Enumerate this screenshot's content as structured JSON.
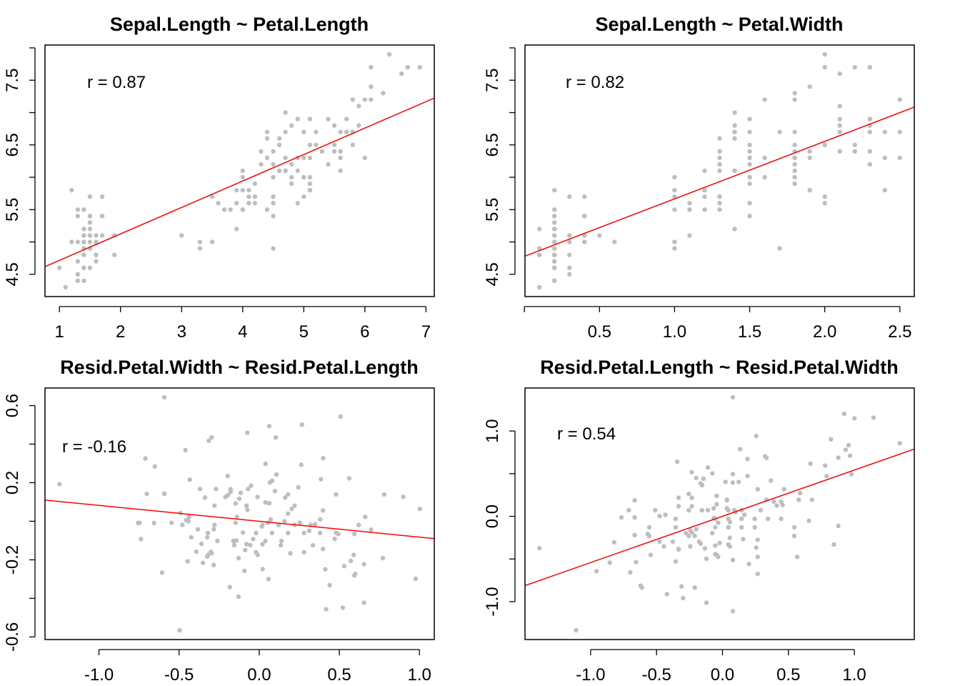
{
  "chart_data": [
    {
      "type": "scatter",
      "title": "Sepal.Length ~ Petal.Length",
      "x": {
        "var": "petal_length"
      },
      "y": {
        "var": "sepal_length"
      },
      "r_label": "r = 0.87",
      "x_ticks": [
        1,
        2,
        3,
        4,
        5,
        6,
        7
      ],
      "x_labels": [
        "1",
        "2",
        "3",
        "4",
        "5",
        "6",
        "7"
      ],
      "y_ticks": [
        4.5,
        5,
        5.5,
        6,
        6.5,
        7,
        7.5,
        8
      ],
      "y_labels": {
        "4.5": "4.5",
        "5.5": "5.5",
        "6.5": "6.5",
        "7.5": "7.5"
      },
      "point_color": "#bebebe",
      "line_color": "#ff0000"
    },
    {
      "type": "scatter",
      "title": "Sepal.Length ~ Petal.Width",
      "x": {
        "var": "petal_width"
      },
      "y": {
        "var": "sepal_length"
      },
      "r_label": "r = 0.82",
      "x_ticks": [
        0,
        0.5,
        1,
        1.5,
        2,
        2.5
      ],
      "x_labels": [
        "",
        "0.5",
        "1.0",
        "1.5",
        "2.0",
        "2.5"
      ],
      "y_ticks": [
        4.5,
        5,
        5.5,
        6,
        6.5,
        7,
        7.5,
        8
      ],
      "y_labels": {
        "4.5": "4.5",
        "5.5": "5.5",
        "6.5": "6.5",
        "7.5": "7.5"
      },
      "point_color": "#bebebe",
      "line_color": "#ff0000"
    },
    {
      "type": "scatter",
      "title": "Resid.Petal.Width ~ Resid.Petal.Length",
      "x": {
        "resid": "sepal_length",
        "on": "petal_length"
      },
      "y": {
        "resid": "petal_width",
        "on": "petal_length"
      },
      "r_label": "r = -0.16",
      "x_ticks": [
        -1,
        -0.5,
        0,
        0.5,
        1
      ],
      "x_labels": [
        "-1.0",
        "-0.5",
        "0.0",
        "0.5",
        "1.0"
      ],
      "y_ticks": [
        -0.6,
        -0.4,
        -0.2,
        0,
        0.2,
        0.4,
        0.6
      ],
      "y_labels": {
        "-0.6": "-0.6",
        "-0.2": "-0.2",
        "0.2": "0.2",
        "0.6": "0.6"
      },
      "point_color": "#bebebe",
      "line_color": "#ff0000"
    },
    {
      "type": "scatter",
      "title": "Resid.Petal.Length ~ Resid.Petal.Width",
      "x": {
        "resid": "sepal_length",
        "on": "petal_width"
      },
      "y": {
        "resid": "petal_length",
        "on": "petal_width"
      },
      "r_label": "r = 0.54",
      "x_ticks": [
        -1,
        -0.5,
        0,
        0.5,
        1
      ],
      "x_labels": [
        "-1.0",
        "-0.5",
        "0.0",
        "0.5",
        "1.0"
      ],
      "y_ticks": [
        -1,
        -0.5,
        0,
        0.5,
        1
      ],
      "y_labels": {
        "-1": "-1.0",
        "0": "0.0",
        "1": "1.0"
      },
      "point_color": "#bebebe",
      "line_color": "#ff0000"
    }
  ],
  "iris": {
    "sepal_length": [
      5.1,
      4.9,
      4.7,
      4.6,
      5.0,
      5.4,
      4.6,
      5.0,
      4.4,
      4.9,
      5.4,
      4.8,
      4.8,
      4.3,
      5.8,
      5.7,
      5.4,
      5.1,
      5.7,
      5.1,
      5.4,
      5.1,
      4.6,
      5.1,
      4.8,
      5.0,
      5.0,
      5.2,
      5.2,
      4.7,
      4.8,
      5.4,
      5.2,
      5.5,
      4.9,
      5.0,
      5.5,
      4.9,
      4.4,
      5.1,
      5.0,
      4.5,
      4.4,
      5.0,
      5.1,
      4.8,
      5.1,
      4.6,
      5.3,
      5.0,
      7.0,
      6.4,
      6.9,
      5.5,
      6.5,
      5.7,
      6.3,
      4.9,
      6.6,
      5.2,
      5.0,
      5.9,
      6.0,
      6.1,
      5.6,
      6.7,
      5.6,
      5.8,
      6.2,
      5.6,
      5.9,
      6.1,
      6.3,
      6.1,
      6.4,
      6.6,
      6.8,
      6.7,
      6.0,
      5.7,
      5.5,
      5.5,
      5.8,
      6.0,
      5.4,
      6.0,
      6.7,
      6.3,
      5.6,
      5.5,
      5.5,
      6.1,
      5.8,
      5.0,
      5.6,
      5.7,
      5.7,
      6.2,
      5.1,
      5.7,
      6.3,
      5.8,
      7.1,
      6.3,
      6.5,
      7.6,
      4.9,
      7.3,
      6.7,
      7.2,
      6.5,
      6.4,
      6.8,
      5.7,
      5.8,
      6.4,
      6.5,
      7.7,
      7.7,
      6.0,
      6.9,
      5.6,
      7.7,
      6.3,
      6.7,
      7.2,
      6.2,
      6.1,
      6.4,
      7.2,
      7.4,
      7.9,
      6.4,
      6.3,
      6.1,
      7.7,
      6.3,
      6.4,
      6.0,
      6.9,
      6.7,
      6.9,
      5.8,
      6.8,
      6.7,
      6.7,
      6.3,
      6.5,
      6.2,
      5.9
    ],
    "petal_length": [
      1.4,
      1.4,
      1.3,
      1.5,
      1.4,
      1.7,
      1.4,
      1.5,
      1.4,
      1.5,
      1.5,
      1.6,
      1.4,
      1.1,
      1.2,
      1.5,
      1.3,
      1.4,
      1.7,
      1.5,
      1.7,
      1.5,
      1.0,
      1.7,
      1.9,
      1.6,
      1.6,
      1.5,
      1.4,
      1.6,
      1.6,
      1.5,
      1.5,
      1.4,
      1.5,
      1.2,
      1.3,
      1.4,
      1.3,
      1.5,
      1.3,
      1.3,
      1.3,
      1.6,
      1.9,
      1.4,
      1.6,
      1.4,
      1.5,
      1.4,
      4.7,
      4.5,
      4.9,
      4.0,
      4.6,
      4.5,
      4.7,
      3.3,
      4.6,
      3.9,
      3.5,
      4.2,
      4.0,
      4.7,
      3.6,
      4.4,
      4.5,
      4.1,
      4.5,
      3.9,
      4.8,
      4.0,
      4.9,
      4.7,
      4.3,
      4.4,
      4.8,
      5.0,
      4.5,
      3.5,
      3.8,
      3.7,
      3.9,
      5.1,
      4.5,
      4.5,
      4.7,
      4.4,
      4.1,
      4.0,
      4.4,
      4.6,
      4.0,
      3.3,
      4.2,
      4.2,
      4.2,
      4.3,
      3.0,
      4.1,
      6.0,
      5.1,
      5.9,
      5.6,
      5.8,
      6.6,
      4.5,
      6.3,
      5.8,
      6.1,
      5.1,
      5.3,
      5.5,
      5.0,
      5.1,
      5.3,
      5.5,
      6.7,
      6.9,
      5.0,
      5.7,
      4.9,
      6.7,
      4.9,
      5.7,
      6.0,
      4.8,
      4.9,
      5.6,
      5.8,
      6.1,
      6.4,
      5.6,
      5.1,
      5.6,
      6.1,
      5.6,
      5.5,
      4.8,
      5.4,
      5.6,
      5.1,
      5.1,
      5.9,
      5.7,
      5.2,
      5.0,
      5.2,
      5.4,
      5.1
    ],
    "petal_width": [
      0.2,
      0.2,
      0.2,
      0.2,
      0.2,
      0.4,
      0.3,
      0.2,
      0.2,
      0.1,
      0.2,
      0.2,
      0.1,
      0.1,
      0.2,
      0.4,
      0.4,
      0.3,
      0.3,
      0.3,
      0.2,
      0.4,
      0.2,
      0.5,
      0.2,
      0.2,
      0.4,
      0.2,
      0.2,
      0.2,
      0.2,
      0.4,
      0.1,
      0.2,
      0.2,
      0.2,
      0.2,
      0.1,
      0.2,
      0.2,
      0.3,
      0.3,
      0.2,
      0.6,
      0.4,
      0.3,
      0.2,
      0.2,
      0.2,
      0.2,
      1.4,
      1.5,
      1.5,
      1.3,
      1.5,
      1.3,
      1.6,
      1.0,
      1.3,
      1.4,
      1.0,
      1.5,
      1.0,
      1.4,
      1.3,
      1.4,
      1.5,
      1.0,
      1.5,
      1.1,
      1.8,
      1.3,
      1.5,
      1.2,
      1.3,
      1.4,
      1.4,
      1.7,
      1.5,
      1.0,
      1.1,
      1.0,
      1.2,
      1.6,
      1.5,
      1.6,
      1.5,
      1.3,
      1.3,
      1.3,
      1.2,
      1.4,
      1.2,
      1.0,
      1.3,
      1.2,
      1.3,
      1.3,
      1.1,
      1.3,
      2.5,
      1.9,
      2.1,
      1.8,
      2.2,
      2.1,
      1.7,
      1.8,
      1.8,
      2.5,
      2.0,
      1.9,
      2.1,
      2.0,
      2.4,
      2.3,
      1.8,
      2.2,
      2.3,
      1.5,
      2.3,
      2.0,
      2.0,
      1.8,
      2.1,
      1.8,
      1.8,
      1.8,
      2.1,
      1.6,
      1.9,
      2.0,
      2.2,
      1.5,
      1.4,
      2.3,
      2.4,
      1.8,
      1.8,
      2.1,
      2.4,
      2.3,
      1.9,
      2.3,
      2.5,
      2.3,
      1.9,
      2.0,
      2.3,
      1.8
    ]
  }
}
